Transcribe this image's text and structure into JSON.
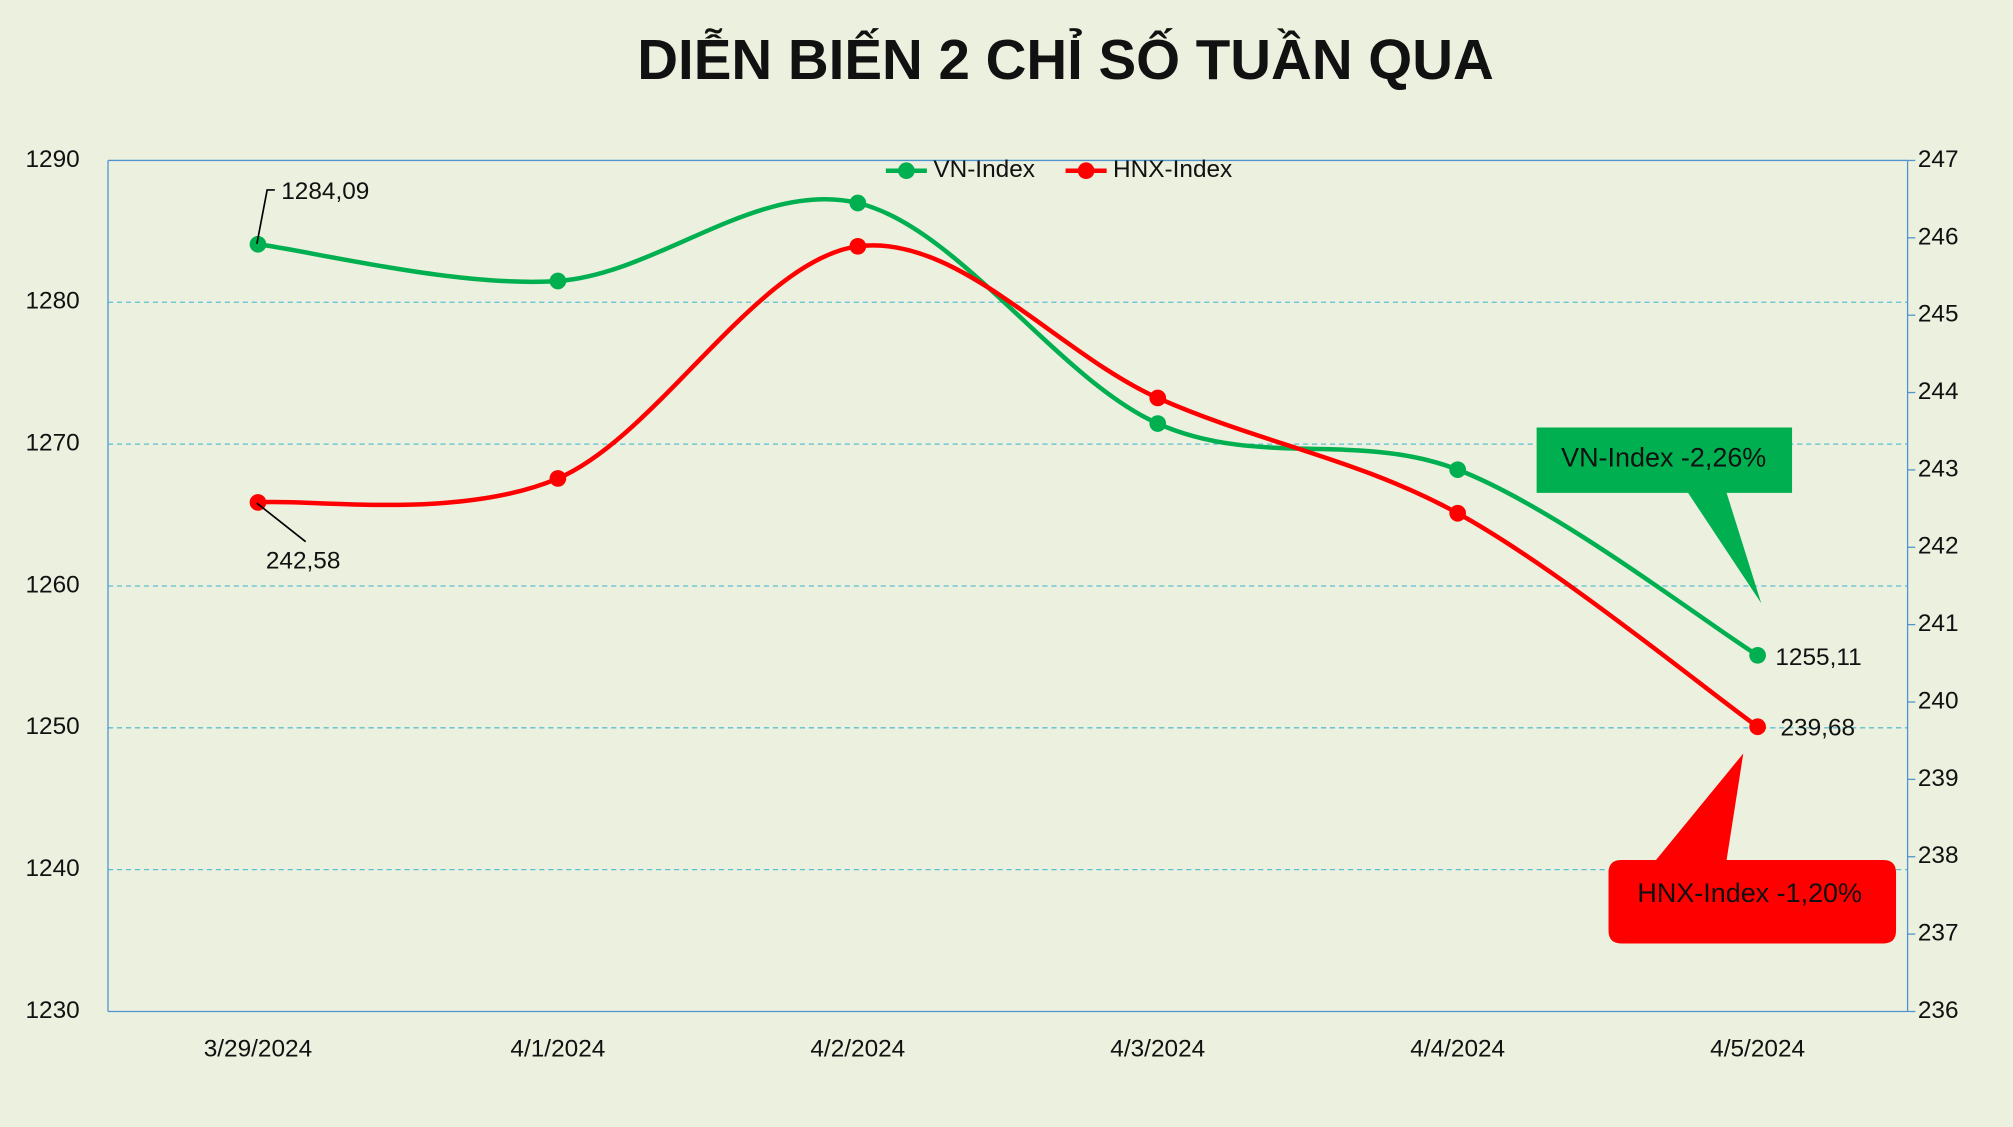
{
  "chart_data": {
    "type": "line",
    "title": "DIỄN BIẾN 2 CHỈ SỐ TUẦN QUA",
    "categories": [
      "3/29/2024",
      "4/1/2024",
      "4/2/2024",
      "4/3/2024",
      "4/4/2024",
      "4/5/2024"
    ],
    "series": [
      {
        "name": "VN-Index",
        "color": "#00b050",
        "values": [
          1284.09,
          1281.5,
          1287.0,
          1271.45,
          1268.2,
          1255.11
        ],
        "value_labels": [
          "1284,09",
          null,
          null,
          null,
          null,
          "1255,11"
        ]
      },
      {
        "name": "HNX-Index",
        "color": "#ff0000",
        "axis": "y2",
        "values": [
          242.58,
          242.89,
          245.89,
          243.93,
          242.44,
          239.68
        ],
        "value_labels": [
          "242,58",
          null,
          null,
          null,
          null,
          "239,68"
        ]
      }
    ],
    "ylim": [
      1230,
      1290
    ],
    "yticks": [
      1230,
      1240,
      1250,
      1260,
      1270,
      1280,
      1290
    ],
    "y2lim": [
      236,
      247
    ],
    "y2ticks": [
      236,
      237,
      238,
      239,
      240,
      241,
      242,
      243,
      244,
      245,
      246,
      247
    ],
    "grid": true,
    "legend": "top",
    "smooth": true,
    "annotations": [
      {
        "text": "VN-Index -2,26%",
        "color": "#00b050"
      },
      {
        "text": "HNX-Index -1,20%",
        "color": "#ff0000"
      }
    ]
  }
}
